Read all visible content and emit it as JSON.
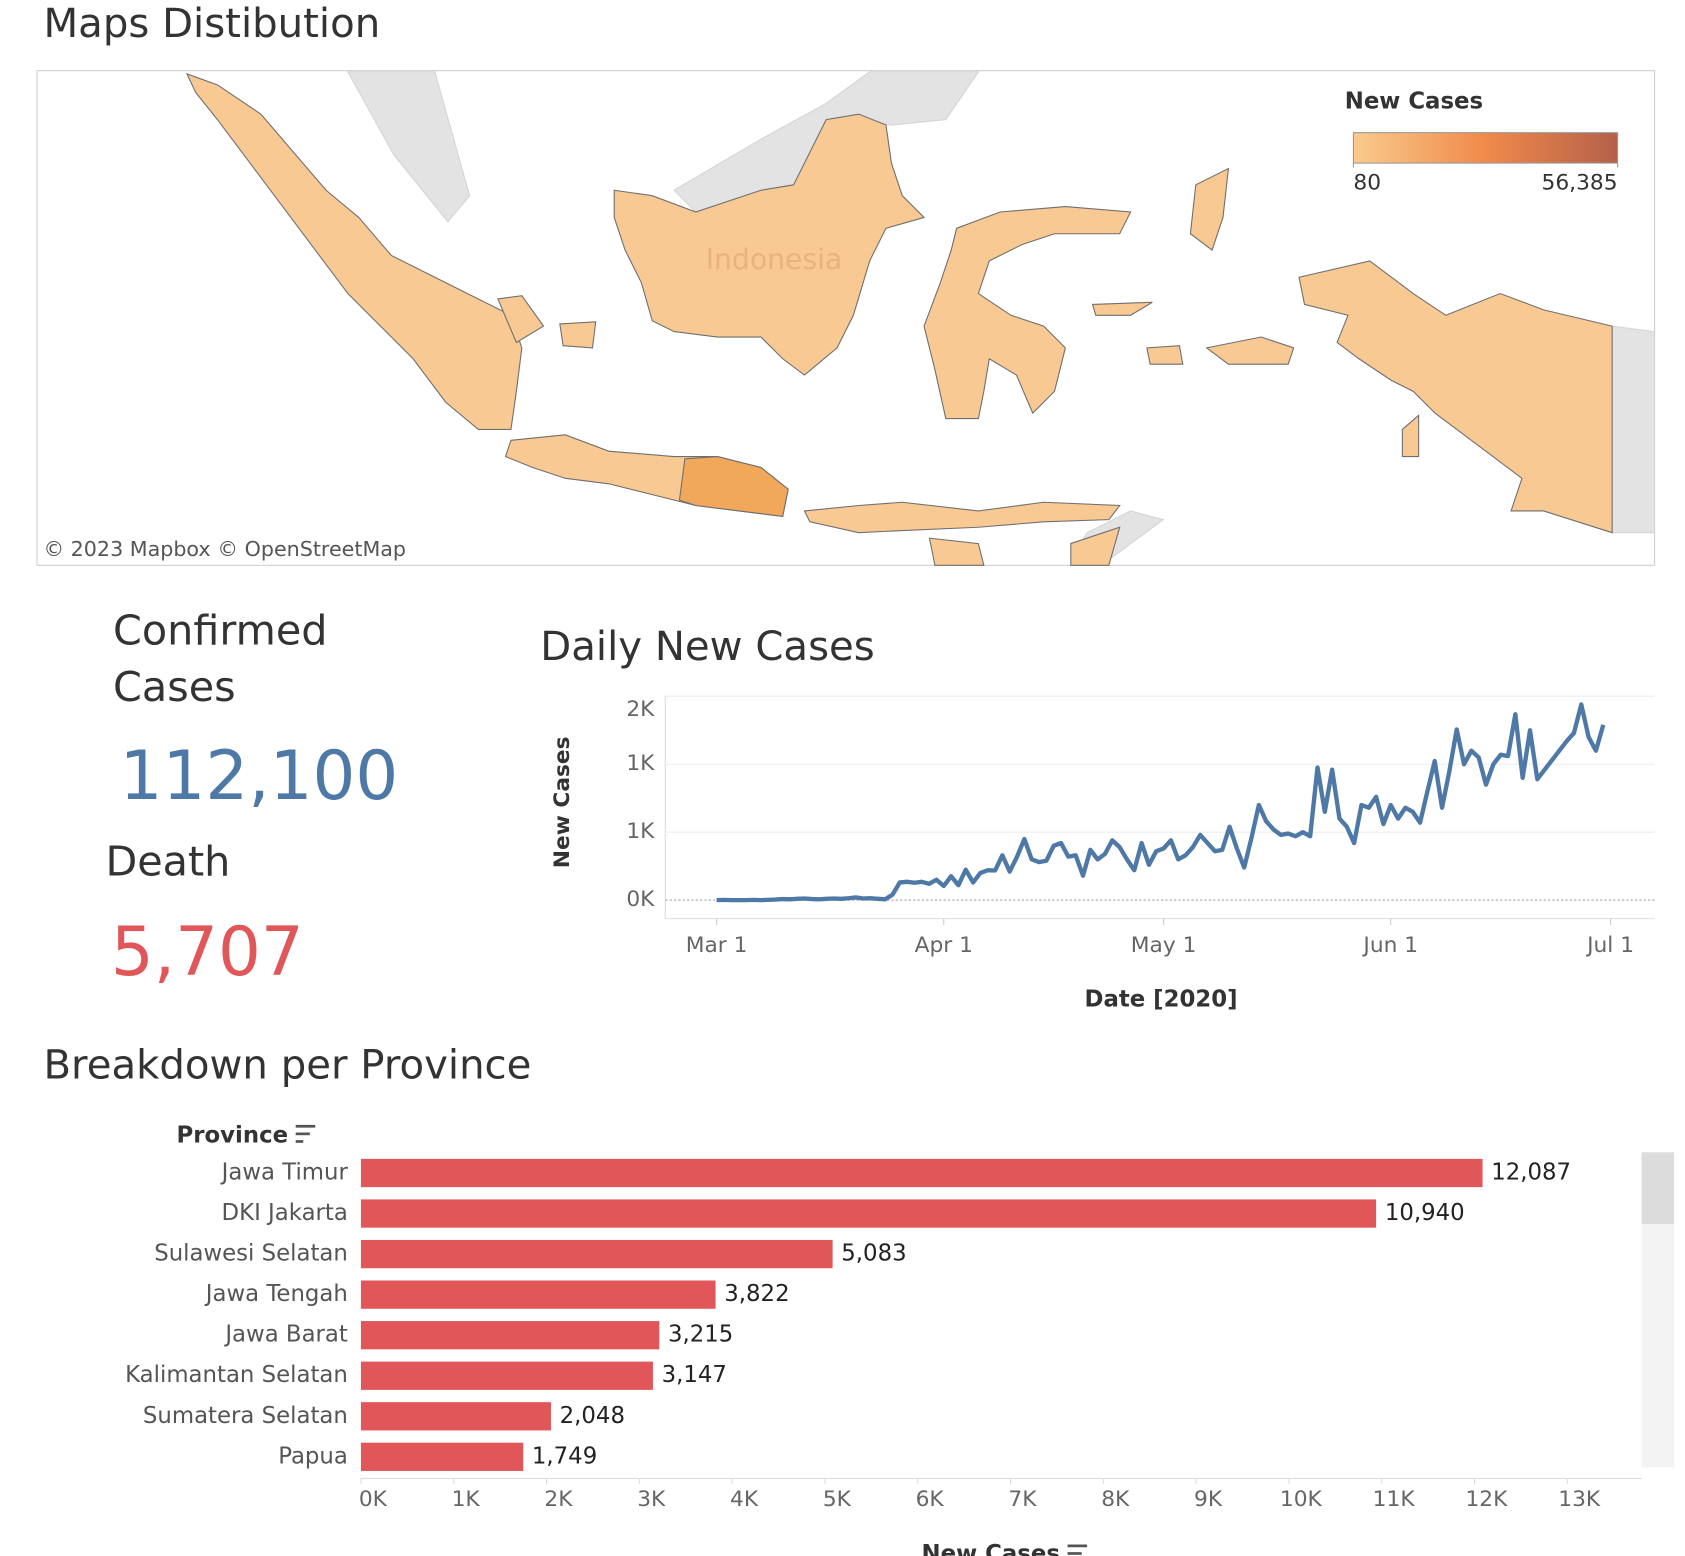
{
  "map": {
    "title": "Maps Distibution",
    "place_label": "Indonesia",
    "attribution": [
      "© 2023 Mapbox",
      "© OpenStreetMap"
    ],
    "legend": {
      "title": "New Cases",
      "colors": [
        "#f9cb8c",
        "#f08a4b",
        "#b4604a"
      ],
      "range": [
        80,
        {
          "value": 56385,
          "label": "56,385"
        }
      ]
    }
  },
  "kpis": [
    {
      "label": "Confirmed Cases",
      "value": "112,100",
      "color": "#4e79a7"
    },
    {
      "label": "Death",
      "value": "5,707",
      "color": "#e15759"
    }
  ],
  "chart_data": [
    {
      "type": "line",
      "title": "Daily New Cases",
      "x_label": "Date [2020]",
      "y_label": "New Cases",
      "color": "#4e79a7",
      "x": [
        "2020-03-01",
        "2020-03-02",
        "2020-03-03",
        "2020-03-04",
        "2020-03-05",
        "2020-03-06",
        "2020-03-07",
        "2020-03-08",
        "2020-03-09",
        "2020-03-10",
        "2020-03-11",
        "2020-03-12",
        "2020-03-13",
        "2020-03-14",
        "2020-03-15",
        "2020-03-16",
        "2020-03-17",
        "2020-03-18",
        "2020-03-19",
        "2020-03-20",
        "2020-03-21",
        "2020-03-22",
        "2020-03-23",
        "2020-03-24",
        "2020-03-25",
        "2020-03-26",
        "2020-03-27",
        "2020-03-28",
        "2020-03-29",
        "2020-03-30",
        "2020-03-31",
        "2020-04-01",
        "2020-04-02",
        "2020-04-03",
        "2020-04-04",
        "2020-04-05",
        "2020-04-06",
        "2020-04-07",
        "2020-04-08",
        "2020-04-09",
        "2020-04-10",
        "2020-04-11",
        "2020-04-12",
        "2020-04-13",
        "2020-04-14",
        "2020-04-15",
        "2020-04-16",
        "2020-04-17",
        "2020-04-18",
        "2020-04-19",
        "2020-04-20",
        "2020-04-21",
        "2020-04-22",
        "2020-04-23",
        "2020-04-24",
        "2020-04-25",
        "2020-04-26",
        "2020-04-27",
        "2020-04-28",
        "2020-04-29",
        "2020-04-30",
        "2020-05-01",
        "2020-05-02",
        "2020-05-03",
        "2020-05-04",
        "2020-05-05",
        "2020-05-06",
        "2020-05-07",
        "2020-05-08",
        "2020-05-09",
        "2020-05-10",
        "2020-05-11",
        "2020-05-12",
        "2020-05-13",
        "2020-05-14",
        "2020-05-15",
        "2020-05-16",
        "2020-05-17",
        "2020-05-18",
        "2020-05-19",
        "2020-05-20",
        "2020-05-21",
        "2020-05-22",
        "2020-05-23",
        "2020-05-24",
        "2020-05-25",
        "2020-05-26",
        "2020-05-27",
        "2020-05-28",
        "2020-05-29",
        "2020-05-30",
        "2020-05-31",
        "2020-06-01",
        "2020-06-02",
        "2020-06-03",
        "2020-06-04",
        "2020-06-05",
        "2020-06-06",
        "2020-06-07",
        "2020-06-08",
        "2020-06-09",
        "2020-06-10",
        "2020-06-11",
        "2020-06-12",
        "2020-06-13",
        "2020-06-14",
        "2020-06-15",
        "2020-06-16",
        "2020-06-17",
        "2020-06-18",
        "2020-06-19",
        "2020-06-20",
        "2020-06-21",
        "2020-06-22",
        "2020-06-23",
        "2020-06-24",
        "2020-06-25",
        "2020-06-26",
        "2020-06-27",
        "2020-06-28",
        "2020-06-29",
        "2020-06-30"
      ],
      "values": [
        0,
        2,
        0,
        0,
        0,
        2,
        0,
        2,
        4,
        8,
        6,
        10,
        12,
        8,
        6,
        10,
        12,
        10,
        14,
        20,
        12,
        14,
        10,
        6,
        40,
        130,
        135,
        128,
        135,
        120,
        150,
        104,
        176,
        110,
        224,
        130,
        200,
        220,
        218,
        330,
        210,
        320,
        450,
        300,
        280,
        290,
        400,
        420,
        320,
        330,
        180,
        370,
        300,
        340,
        440,
        390,
        300,
        220,
        420,
        260,
        360,
        380,
        440,
        300,
        330,
        390,
        480,
        420,
        360,
        370,
        540,
        380,
        240,
        460,
        700,
        580,
        520,
        480,
        490,
        470,
        500,
        470,
        976,
        650,
        960,
        600,
        540,
        420,
        700,
        680,
        760,
        560,
        700,
        600,
        680,
        650,
        570,
        800,
        1024,
        680,
        950,
        1256,
        1000,
        1100,
        1050,
        850,
        1000,
        1070,
        1060,
        1368,
        900,
        1250,
        890,
        960,
        1030,
        1100,
        1170,
        1230,
        1440,
        1200,
        1100,
        1290
      ],
      "xlim": [
        "2020-02-23",
        "2020-07-07"
      ],
      "xticks": [
        {
          "value": "2020-03-01",
          "label": "Mar 1"
        },
        {
          "value": "2020-04-01",
          "label": "Apr 1"
        },
        {
          "value": "2020-05-01",
          "label": "May 1"
        },
        {
          "value": "2020-06-01",
          "label": "Jun 1"
        },
        {
          "value": "2020-07-01",
          "label": "Jul 1"
        }
      ],
      "ylim": [
        0,
        1500
      ],
      "yticks": [
        {
          "value": 0,
          "label": "0K"
        },
        {
          "value": 500,
          "label": "1K"
        },
        {
          "value": 1000,
          "label": "1K"
        },
        {
          "value": 1500,
          "label": "2K"
        }
      ],
      "grid": true
    },
    {
      "type": "hbar",
      "title": "Breakdown per Province",
      "y_label": "Province",
      "x_label": "New Cases",
      "color": "#e15759",
      "categories": [
        "Jawa Timur",
        "DKI Jakarta",
        "Sulawesi Selatan",
        "Jawa Tengah",
        "Jawa Barat",
        "Kalimantan Selatan",
        "Sumatera Selatan",
        "Papua"
      ],
      "values": [
        12087,
        10940,
        5083,
        3822,
        3215,
        3147,
        2048,
        1749
      ],
      "value_labels": [
        "12,087",
        "10,940",
        "5,083",
        "3,822",
        "3,215",
        "3,147",
        "2,048",
        "1,749"
      ],
      "xlim": [
        0,
        13800
      ],
      "xticks": [
        {
          "value": 0,
          "label": "0K"
        },
        {
          "value": 1000,
          "label": "1K"
        },
        {
          "value": 2000,
          "label": "2K"
        },
        {
          "value": 3000,
          "label": "3K"
        },
        {
          "value": 4000,
          "label": "4K"
        },
        {
          "value": 5000,
          "label": "5K"
        },
        {
          "value": 6000,
          "label": "6K"
        },
        {
          "value": 7000,
          "label": "7K"
        },
        {
          "value": 8000,
          "label": "8K"
        },
        {
          "value": 9000,
          "label": "9K"
        },
        {
          "value": 10000,
          "label": "10K"
        },
        {
          "value": 11000,
          "label": "11K"
        },
        {
          "value": 12000,
          "label": "12K"
        },
        {
          "value": 13000,
          "label": "13K"
        }
      ]
    }
  ]
}
